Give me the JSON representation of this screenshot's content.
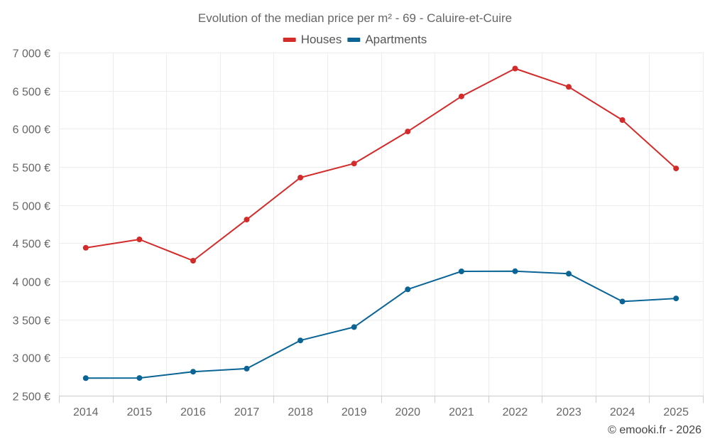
{
  "chart_data": {
    "type": "line",
    "title": "Evolution of the median price per m² - 69 - Caluire-et-Cuire",
    "xlabel": "",
    "ylabel": "",
    "categories": [
      "2014",
      "2015",
      "2016",
      "2017",
      "2018",
      "2019",
      "2020",
      "2021",
      "2022",
      "2023",
      "2024",
      "2025"
    ],
    "series": [
      {
        "name": "Houses",
        "color": "#d32a2a",
        "values": [
          4440,
          4550,
          4270,
          4810,
          5360,
          5545,
          5965,
          6425,
          6790,
          6550,
          6115,
          5480
        ]
      },
      {
        "name": "Apartments",
        "color": "#0a6496",
        "values": [
          2730,
          2732,
          2815,
          2855,
          3225,
          3400,
          3895,
          4130,
          4132,
          4100,
          3735,
          3775
        ]
      }
    ],
    "ylim": [
      2500,
      7000
    ],
    "yticks": [
      2500,
      3000,
      3500,
      4000,
      4500,
      5000,
      5500,
      6000,
      6500,
      7000
    ],
    "ytick_labels": [
      "2 500 €",
      "3 000 €",
      "3 500 €",
      "4 000 €",
      "4 500 €",
      "5 000 €",
      "5 500 €",
      "6 000 €",
      "6 500 €",
      "7 000 €"
    ],
    "grid": true,
    "legend_position": "top-center"
  },
  "credit": "© emooki.fr - 2026"
}
